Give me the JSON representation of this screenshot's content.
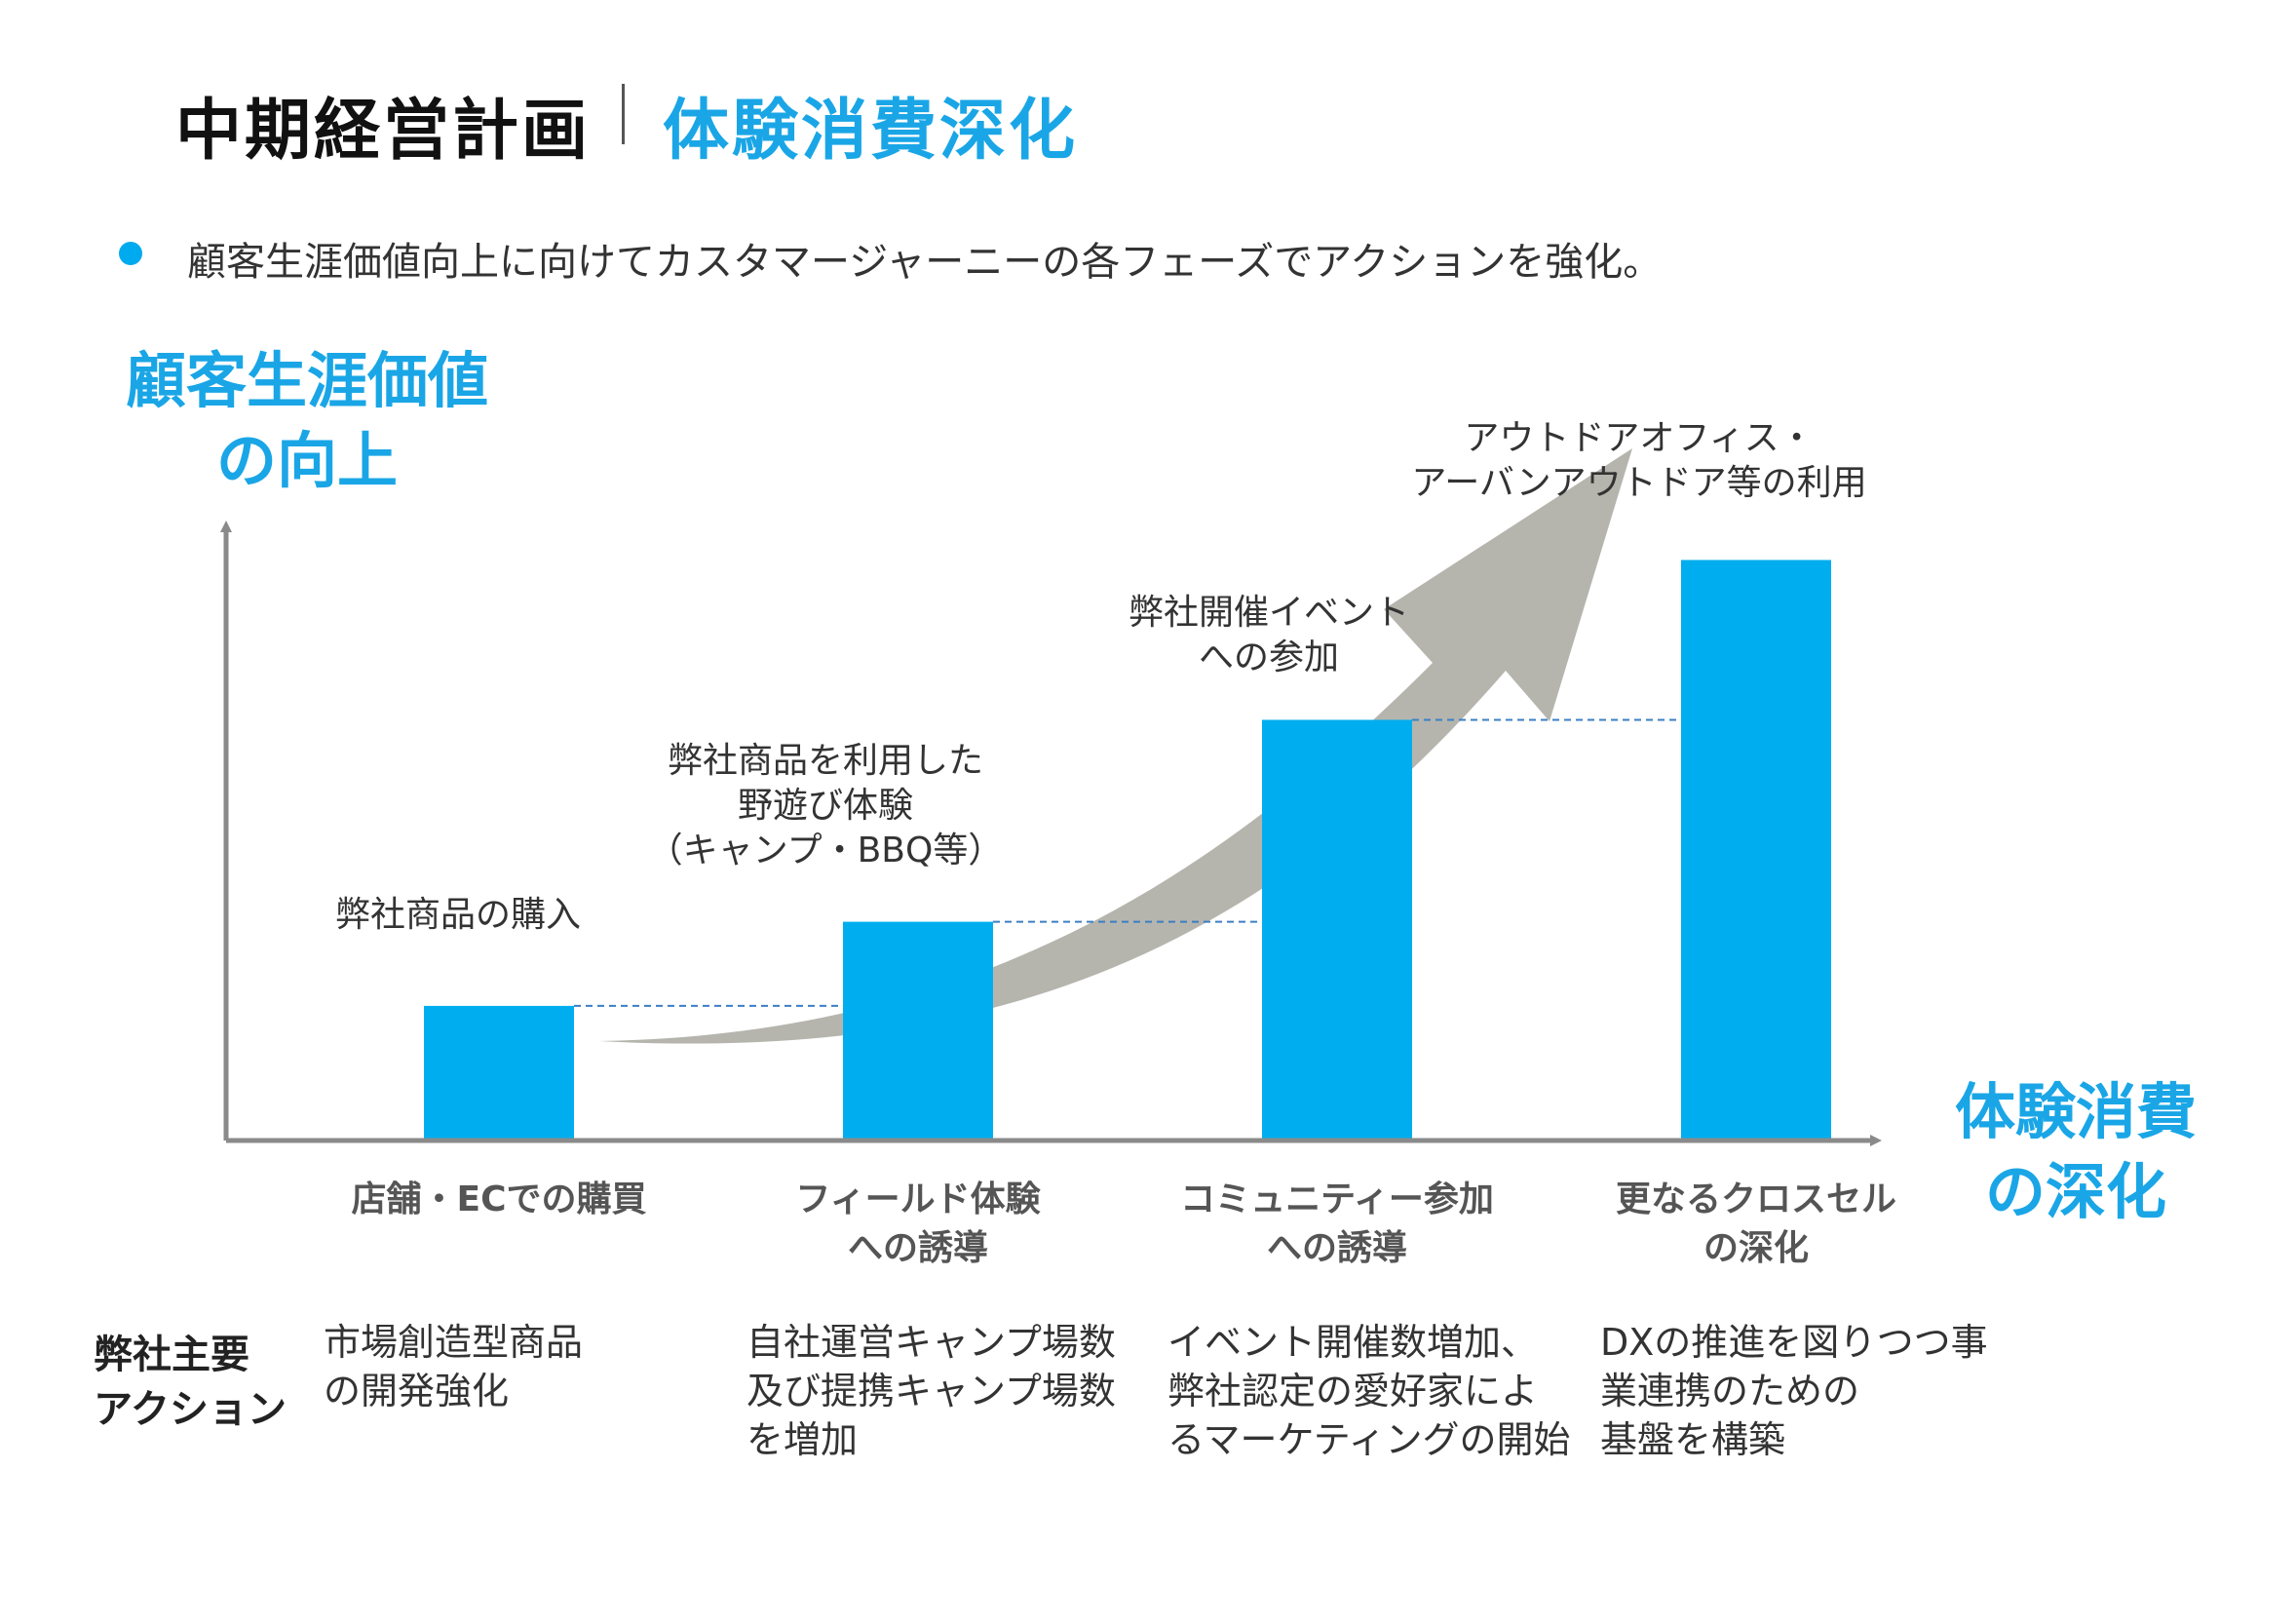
{
  "title": {
    "main": "中期経営計画",
    "sub": "体験消費深化"
  },
  "bullet": "顧客生涯価値向上に向けてカスタマージャーニーの各フェーズでアクションを強化。",
  "colors": {
    "accent": "#00aaee",
    "bar": "#00aeef",
    "arrow": "#b5b5ae",
    "axis": "#8a8a8a"
  },
  "chart_data": {
    "type": "bar",
    "y_axis_title": "顧客生涯価値\nの向上",
    "x_axis_title": "体験消費\nの深化",
    "categories": [
      "店舗・ECでの購買",
      "フィールド体験\nへの誘導",
      "コミュニティー参加\nへの誘導",
      "更なるクロスセル\nの深化"
    ],
    "values": [
      1.6,
      2.6,
      5.0,
      6.9
    ],
    "ylim": [
      0,
      8.4
    ],
    "bar_labels": [
      "弊社商品の購入",
      "弊社商品を利用した\n野遊び体験\n（キャンプ・BBQ等）",
      "弊社開催イベント\nへの参加",
      "アウトドアオフィス・\nアーバンアウトドア等の利用"
    ],
    "connectors": "dashed",
    "trend_arrow": true
  },
  "actions": {
    "heading": "弊社主要\nアクション",
    "items": [
      "市場創造型商品\nの開発強化",
      "自社運営キャンプ場数\n及び提携キャンプ場数\nを増加",
      "イベント開催数増加、\n弊社認定の愛好家によ\nるマーケティングの開始",
      "DXの推進を図りつつ事\n業連携のための\n基盤を構築"
    ]
  }
}
